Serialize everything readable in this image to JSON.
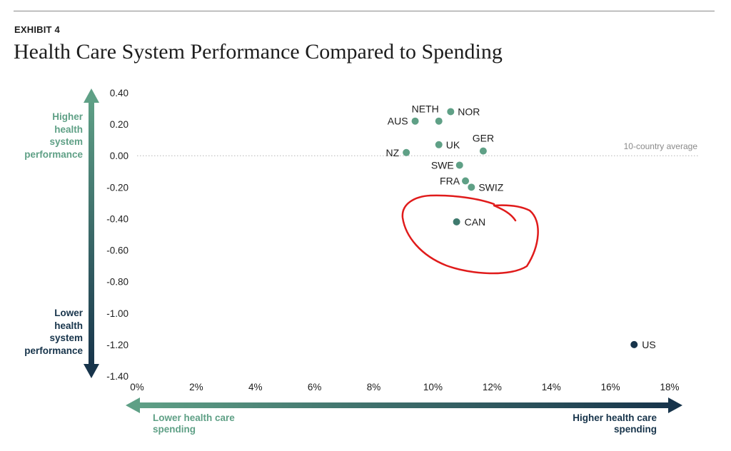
{
  "header": {
    "exhibit": "EXHIBIT 4",
    "title": "Health Care System Performance Compared to Spending"
  },
  "axis_labels": {
    "y_high": [
      "Higher",
      "health",
      "system",
      "performance"
    ],
    "y_low": [
      "Lower",
      "health",
      "system",
      "performance"
    ],
    "x_low": [
      "Lower health care",
      "spending"
    ],
    "x_high": [
      "Higher health care",
      "spending"
    ]
  },
  "reference_line_label": "10-country average",
  "colors": {
    "light_teal": "#5fa086",
    "mid_teal": "#3f7a6e",
    "dark_navy": "#17344b",
    "annotation_red": "#e01b1b"
  },
  "chart_data": {
    "type": "scatter",
    "title": "Health Care System Performance Compared to Spending",
    "xlabel": "",
    "ylabel": "",
    "xlim": [
      0,
      18
    ],
    "ylim": [
      -1.4,
      0.4
    ],
    "x_ticks": [
      "0%",
      "2%",
      "4%",
      "6%",
      "8%",
      "10%",
      "12%",
      "14%",
      "16%",
      "18%"
    ],
    "y_ticks": [
      "0.40",
      "0.20",
      "0.00",
      "-0.20",
      "-0.40",
      "-0.60",
      "-0.80",
      "-1.00",
      "-1.20",
      "-1.40"
    ],
    "reference_line_y": 0.0,
    "grid": false,
    "points": [
      {
        "label": "NETH",
        "x": 10.2,
        "y": 0.22
      },
      {
        "label": "NOR",
        "x": 10.6,
        "y": 0.28
      },
      {
        "label": "AUS",
        "x": 9.4,
        "y": 0.22
      },
      {
        "label": "GER",
        "x": 11.7,
        "y": 0.03
      },
      {
        "label": "UK",
        "x": 10.2,
        "y": 0.07
      },
      {
        "label": "NZ",
        "x": 9.1,
        "y": 0.02
      },
      {
        "label": "SWE",
        "x": 10.9,
        "y": -0.06
      },
      {
        "label": "FRA",
        "x": 11.1,
        "y": -0.16
      },
      {
        "label": "SWIZ",
        "x": 11.3,
        "y": -0.2
      },
      {
        "label": "CAN",
        "x": 10.8,
        "y": -0.42
      },
      {
        "label": "US",
        "x": 16.8,
        "y": -1.2
      }
    ]
  }
}
